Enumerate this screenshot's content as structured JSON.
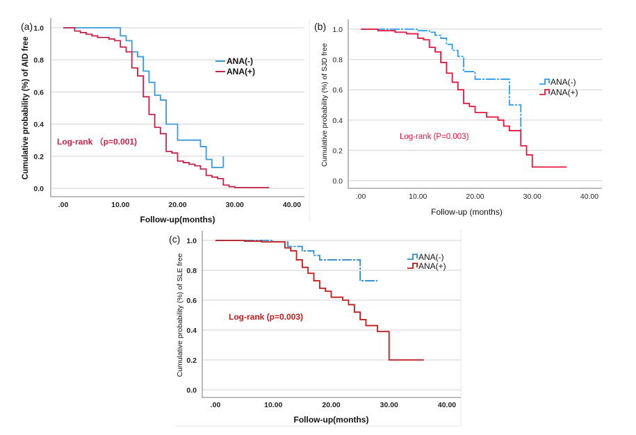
{
  "chart_data": [
    {
      "panel_label": "(a)",
      "type": "line",
      "step": true,
      "title": "",
      "xlabel": "Follow-up(months)",
      "ylabel": "Cumulative probability (%) of AID free",
      "xlim": [
        0,
        40
      ],
      "ylim": [
        0,
        1
      ],
      "xticks": [
        ".00",
        "10.00",
        "20.00",
        "30.00",
        "40.00"
      ],
      "yticks": [
        "0.0",
        "0.2",
        "0.4",
        "0.6",
        "0.8",
        "1.0"
      ],
      "grid": true,
      "legend_position": "upper-right",
      "annotation": "Log-rank （p=0.001)",
      "series": [
        {
          "name": "ANA(-)",
          "color": "#3a9ad9",
          "x": [
            0,
            10,
            11,
            12,
            13,
            14,
            15,
            16,
            17,
            18,
            20,
            24,
            25,
            26,
            28
          ],
          "y": [
            1.0,
            0.95,
            0.92,
            0.85,
            0.82,
            0.73,
            0.66,
            0.58,
            0.55,
            0.4,
            0.3,
            0.26,
            0.18,
            0.13,
            0.13
          ],
          "censor_tick": {
            "x": 28,
            "y": 0.2
          }
        },
        {
          "name": "ANA(+)",
          "color": "#c8234a",
          "x": [
            0,
            2,
            3,
            4,
            5,
            6,
            8,
            9,
            10,
            11,
            12,
            13,
            14,
            15,
            16,
            17,
            18,
            19,
            20,
            21,
            22,
            23,
            24,
            25,
            26,
            27,
            28,
            29,
            30,
            36
          ],
          "y": [
            1.0,
            0.98,
            0.97,
            0.96,
            0.95,
            0.94,
            0.93,
            0.92,
            0.88,
            0.85,
            0.75,
            0.7,
            0.57,
            0.46,
            0.38,
            0.34,
            0.23,
            0.22,
            0.17,
            0.16,
            0.15,
            0.14,
            0.12,
            0.08,
            0.07,
            0.06,
            0.02,
            0.01,
            0.005,
            0.005
          ]
        }
      ]
    },
    {
      "panel_label": "(b)",
      "type": "line",
      "step": true,
      "title": "",
      "xlabel": "Follow-up (months)",
      "ylabel": "Cumulative probability (%) of SJD free",
      "xlim": [
        0,
        40
      ],
      "ylim": [
        0,
        1
      ],
      "xticks": [
        ".00",
        "10.00",
        "20.00",
        "30.00",
        "40.00"
      ],
      "yticks": [
        "0.0",
        "0.2",
        "0.4",
        "0.6",
        "0.8",
        "1.0"
      ],
      "grid": true,
      "legend_position": "right",
      "annotation": "Log-rank (P=0.003)",
      "series": [
        {
          "name": "ANA(-)",
          "color": "#2b9df0",
          "x": [
            0,
            8,
            10,
            12,
            13,
            14,
            15,
            16,
            17,
            18,
            20,
            26,
            28
          ],
          "y": [
            1.0,
            1.0,
            0.99,
            0.98,
            0.96,
            0.94,
            0.9,
            0.86,
            0.82,
            0.72,
            0.67,
            0.5,
            0.25
          ]
        },
        {
          "name": "ANA(+)",
          "color": "#e8163e",
          "x": [
            0,
            3,
            6,
            8,
            10,
            11,
            12,
            13,
            14,
            15,
            16,
            17,
            18,
            19,
            20,
            22,
            24,
            25,
            26,
            28,
            29,
            30,
            36
          ],
          "y": [
            1.0,
            0.99,
            0.98,
            0.97,
            0.94,
            0.93,
            0.88,
            0.85,
            0.78,
            0.71,
            0.65,
            0.6,
            0.51,
            0.49,
            0.45,
            0.42,
            0.4,
            0.36,
            0.33,
            0.23,
            0.17,
            0.09,
            0.09
          ]
        }
      ]
    },
    {
      "panel_label": "(c)",
      "type": "line",
      "step": true,
      "title": "",
      "xlabel": "Follow-up(months)",
      "ylabel": "Cumulative probability (%) of SLE free",
      "xlim": [
        0,
        40
      ],
      "ylim": [
        0,
        1
      ],
      "xticks": [
        ".00",
        "10.00",
        "20.00",
        "30.00",
        "40.00"
      ],
      "yticks": [
        "0.0",
        "0.2",
        "0.4",
        "0.6",
        "0.8",
        "1.0"
      ],
      "grid": true,
      "legend_position": "upper-right",
      "annotation": "Log-rank (p=0.003)",
      "series": [
        {
          "name": "ANA(-)",
          "color": "#2e8ccf",
          "x": [
            0,
            10,
            12,
            12.5,
            15,
            17,
            18,
            25,
            28
          ],
          "y": [
            1.0,
            0.99,
            0.99,
            0.96,
            0.93,
            0.9,
            0.87,
            0.73,
            0.73
          ]
        },
        {
          "name": "ANA(+)",
          "color": "#c41a1a",
          "x": [
            0,
            5,
            8,
            10,
            12,
            13,
            14,
            15,
            16,
            17,
            18,
            19,
            20,
            22,
            23,
            24,
            25,
            26,
            28,
            30,
            36
          ],
          "y": [
            1.0,
            0.995,
            0.99,
            0.99,
            0.95,
            0.93,
            0.87,
            0.82,
            0.78,
            0.73,
            0.68,
            0.66,
            0.62,
            0.6,
            0.57,
            0.52,
            0.47,
            0.43,
            0.39,
            0.2,
            0.2
          ]
        }
      ]
    }
  ]
}
